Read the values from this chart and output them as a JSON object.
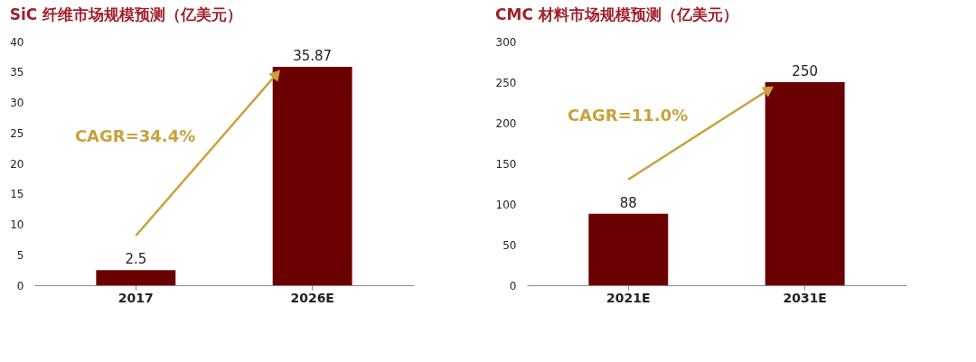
{
  "chart_data": [
    {
      "type": "bar",
      "title": "SiC 纤维市场规模预测（亿美元）",
      "categories": [
        "2017",
        "2026E"
      ],
      "values": [
        2.5,
        35.87
      ],
      "color": "#6b0000",
      "ylim": [
        0,
        40
      ],
      "yticks": [
        0,
        5,
        10,
        15,
        20,
        25,
        30,
        35,
        40
      ],
      "grid": false,
      "data_labels": true,
      "annotations": [
        "CAGR=34.4%"
      ]
    },
    {
      "type": "bar",
      "title": "CMC 材料市场规模预测（亿美元）",
      "categories": [
        "2021E",
        "2031E"
      ],
      "values": [
        88,
        250
      ],
      "color": "#6b0000",
      "ylim": [
        0,
        300
      ],
      "yticks": [
        0,
        50,
        100,
        150,
        200,
        250,
        300
      ],
      "grid": false,
      "data_labels": true,
      "annotations": [
        "CAGR=11.0%"
      ]
    }
  ]
}
